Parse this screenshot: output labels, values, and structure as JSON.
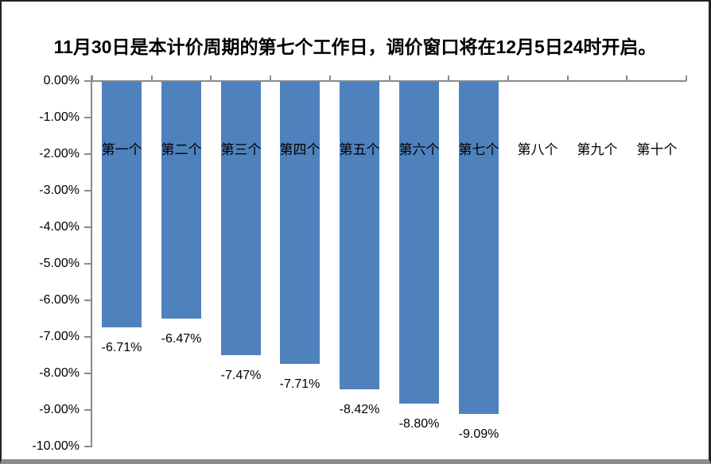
{
  "title": "11月30日是本计价周期的第七个工作日，调价窗口将在12月5日24时开启。",
  "chart_data": {
    "type": "bar",
    "orientation": "vertical",
    "title": "11月30日是本计价周期的第七个工作日，调价窗口将在12月5日24时开启。",
    "categories": [
      "第一个",
      "第二个",
      "第三个",
      "第四个",
      "第五个",
      "第六个",
      "第七个",
      "第八个",
      "第九个",
      "第十个"
    ],
    "values": [
      -6.71,
      -6.47,
      -7.47,
      -7.71,
      -8.42,
      -8.8,
      -9.09,
      null,
      null,
      null
    ],
    "data_labels": [
      "-6.71%",
      "-6.47%",
      "-7.47%",
      "-7.71%",
      "-8.42%",
      "-8.80%",
      "-9.09%",
      null,
      null,
      null
    ],
    "y_ticks": [
      "0.00%",
      "-1.00%",
      "-2.00%",
      "-3.00%",
      "-4.00%",
      "-5.00%",
      "-6.00%",
      "-7.00%",
      "-8.00%",
      "-9.00%",
      "-10.00%"
    ],
    "ylim": [
      -10,
      0
    ],
    "grid": false,
    "legend": null,
    "bar_color": "#4F81BD",
    "axis_color": "#8A8A8A",
    "text_color": "#000000",
    "background": "#FFFFFF"
  }
}
